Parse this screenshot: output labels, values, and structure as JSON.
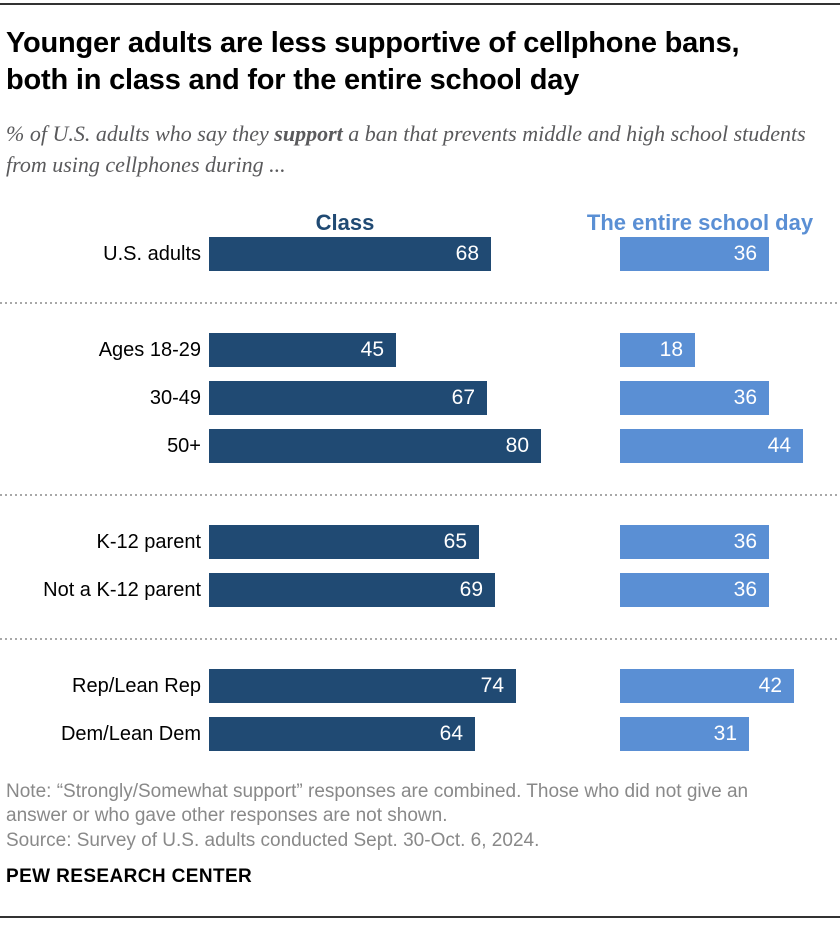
{
  "chart_data": {
    "type": "bar",
    "orientation": "horizontal",
    "title": "Younger adults are less supportive of cellphone bans, both in class and for the entire school day",
    "subtitle_parts": {
      "prefix": "% of U.S. adults who say they ",
      "bold": "support",
      "suffix": " a ban that prevents middle and high school students from using cellphones during ..."
    },
    "unit": "%",
    "xlim": [
      0,
      80
    ],
    "value_labels": true,
    "legend_position": "top",
    "series": [
      {
        "name": "Class",
        "color": "#204a73"
      },
      {
        "name": "The entire school day",
        "color": "#5a8fd4"
      }
    ],
    "groups": [
      {
        "rows": [
          {
            "label": "U.S. adults",
            "values": [
              68,
              36
            ]
          }
        ]
      },
      {
        "rows": [
          {
            "label": "Ages 18-29",
            "values": [
              45,
              18
            ]
          },
          {
            "label": "30-49",
            "values": [
              67,
              36
            ]
          },
          {
            "label": "50+",
            "values": [
              80,
              44
            ]
          }
        ]
      },
      {
        "rows": [
          {
            "label": "K-12 parent",
            "values": [
              65,
              36
            ]
          },
          {
            "label": "Not a K-12 parent",
            "values": [
              69,
              36
            ]
          }
        ]
      },
      {
        "rows": [
          {
            "label": "Rep/Lean Rep",
            "values": [
              74,
              42
            ]
          },
          {
            "label": "Dem/Lean Dem",
            "values": [
              64,
              31
            ]
          }
        ]
      }
    ],
    "note": "Note: “Strongly/Somewhat support” responses are combined. Those who did not give an answer or who gave other responses are not shown.",
    "source": "Source: Survey of U.S. adults conducted Sept. 30-Oct. 6, 2024.",
    "brand": "PEW RESEARCH CENTER"
  }
}
